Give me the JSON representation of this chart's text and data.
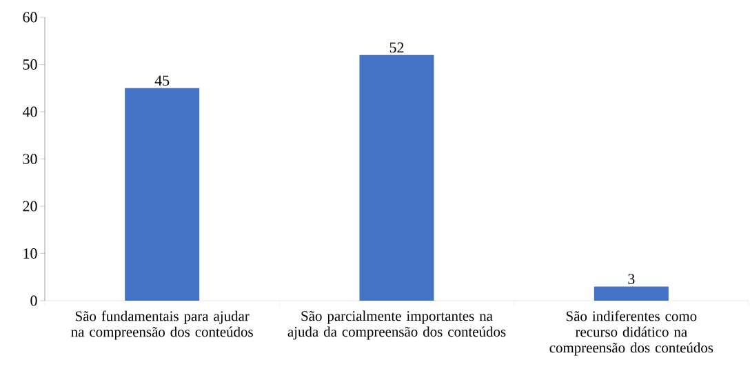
{
  "chart_data": {
    "type": "bar",
    "categories": [
      "São fundamentais para ajudar na compreensão dos conteúdos",
      "São parcialmente importantes na ajuda da compreensão dos conteúdos",
      "São indiferentes como recurso didático na compreensão dos conteúdos"
    ],
    "values": [
      45,
      52,
      3
    ],
    "color": "#4472c4",
    "ylim": [
      0,
      60
    ],
    "yticks": [
      0,
      10,
      20,
      30,
      40,
      50,
      60
    ],
    "data_labels": true
  }
}
